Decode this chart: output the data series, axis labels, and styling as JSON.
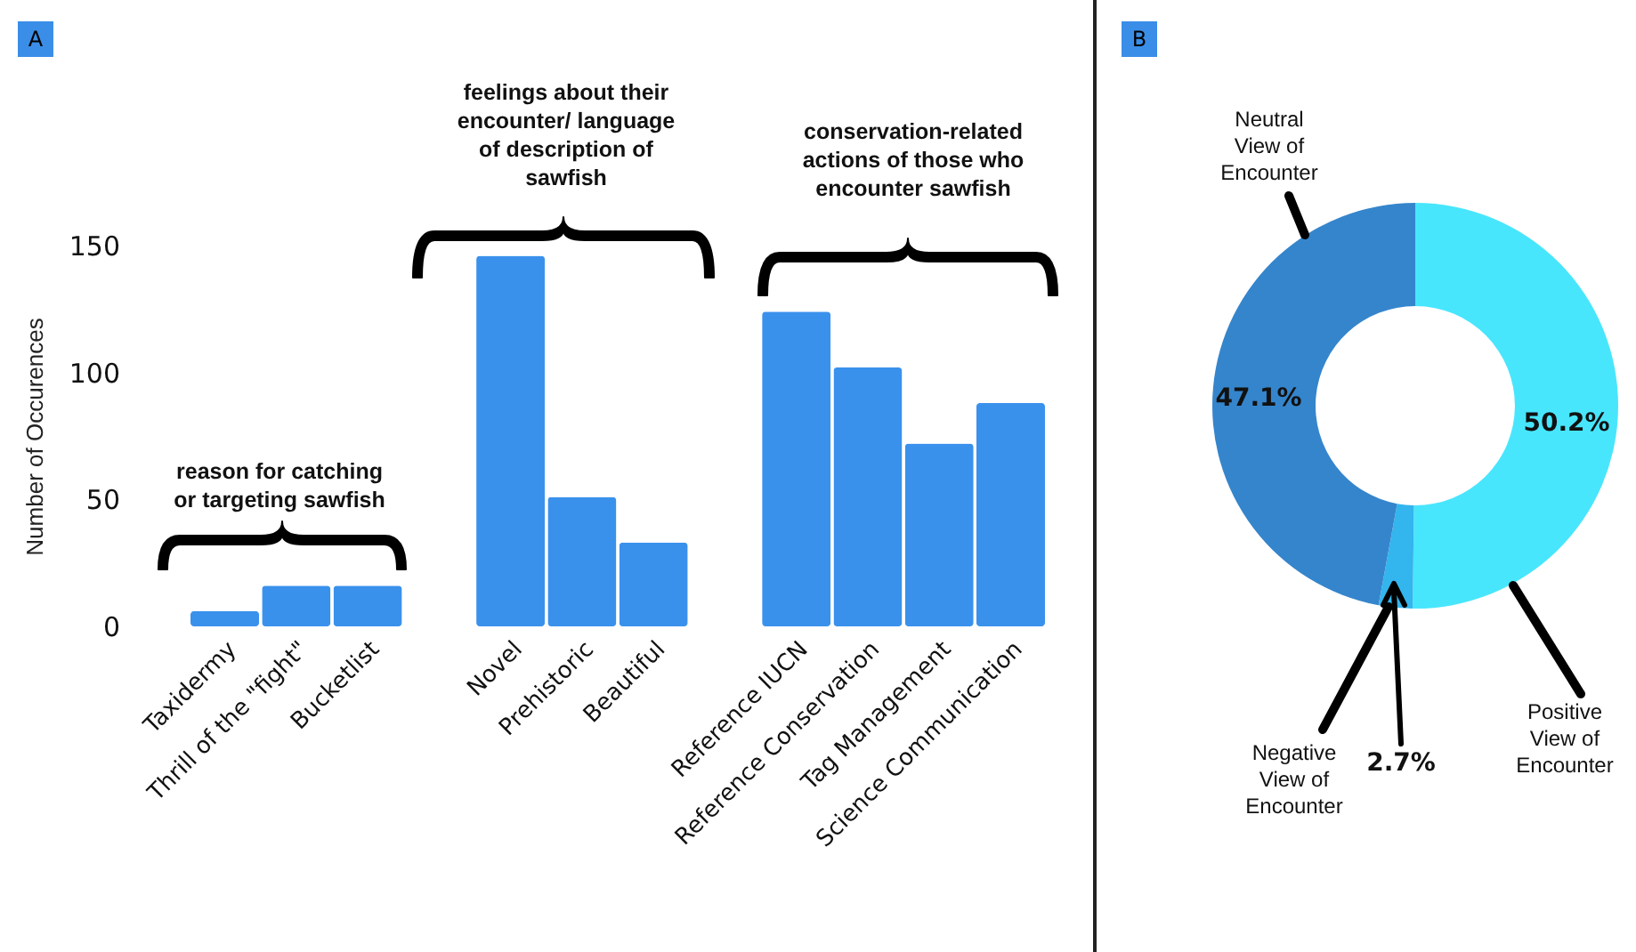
{
  "chart_data": [
    {
      "type": "bar",
      "title": "A",
      "ylabel": "Number of Occurences",
      "categories": [
        "Taxidermy",
        "Thrill of the \"fight\"",
        "Bucketlist",
        null,
        "Novel",
        "Prehistoric",
        "Beautiful",
        null,
        "Reference IUCN",
        "Reference Conservation",
        "Tag Management",
        "Science Communication"
      ],
      "values": [
        6,
        16,
        16,
        null,
        146,
        51,
        33,
        null,
        124,
        102,
        72,
        88
      ],
      "color": "#3a91ec",
      "ylim": [
        0,
        150
      ],
      "yticks": [
        0,
        50,
        100,
        150
      ],
      "grid": false,
      "annotations": [
        "reason for catching or targeting sawfish",
        "feelings about their encounter/ language of description of sawfish",
        "conservation-related actions of those who encounter sawfish"
      ]
    },
    {
      "type": "donut",
      "title": "B",
      "categories": [
        "Positive View of Encounter",
        "Negative View of Encounter",
        "Neutral View of Encounter"
      ],
      "values": [
        50.2,
        2.7,
        47.1
      ],
      "colors": [
        "#48e6fd",
        "#33b5ee",
        "#3585cc"
      ],
      "value_labels": [
        "50.2%",
        "2.7%",
        "47.1%"
      ]
    }
  ]
}
